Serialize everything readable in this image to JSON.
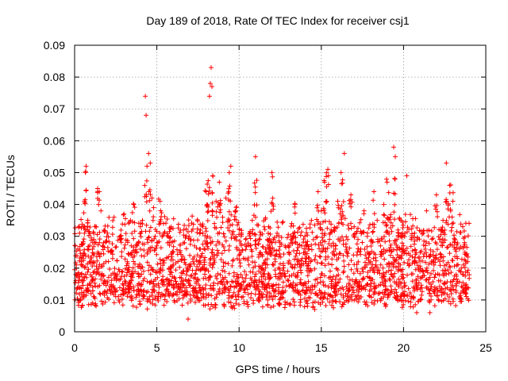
{
  "chart_data": {
    "type": "scatter",
    "title": "Day 189 of 2018, Rate Of TEC Index for receiver csj1",
    "xlabel": "GPS time / hours",
    "ylabel": "ROTI / TECUs",
    "xlim": [
      0,
      25
    ],
    "ylim": [
      0,
      0.09
    ],
    "x_ticks": [
      "0",
      "5",
      "10",
      "15",
      "20",
      "25"
    ],
    "y_ticks": [
      "0",
      "0.01",
      "0.02",
      "0.03",
      "0.04",
      "0.05",
      "0.06",
      "0.07",
      "0.08",
      "0.09"
    ],
    "grid": true,
    "marker": "+",
    "color": "#ff0000",
    "series": [
      {
        "name": "ROTI",
        "description_of_envelope_hours": [
          0,
          24
        ],
        "typical_range": [
          0.01,
          0.04
        ],
        "points": [
          [
            0.1,
            0.021
          ],
          [
            0.2,
            0.026
          ],
          [
            0.3,
            0.031
          ],
          [
            0.4,
            0.018
          ],
          [
            0.5,
            0.024
          ],
          [
            0.6,
            0.041
          ],
          [
            0.65,
            0.05
          ],
          [
            0.7,
            0.052
          ],
          [
            0.8,
            0.035
          ],
          [
            0.9,
            0.015
          ],
          [
            1.0,
            0.012
          ],
          [
            1.1,
            0.028
          ],
          [
            1.2,
            0.019
          ],
          [
            1.3,
            0.033
          ],
          [
            1.4,
            0.045
          ],
          [
            1.5,
            0.044
          ],
          [
            1.6,
            0.038
          ],
          [
            1.7,
            0.027
          ],
          [
            1.8,
            0.016
          ],
          [
            1.9,
            0.022
          ],
          [
            2.0,
            0.031
          ],
          [
            2.2,
            0.025
          ],
          [
            2.4,
            0.036
          ],
          [
            2.6,
            0.018
          ],
          [
            2.8,
            0.029
          ],
          [
            3.0,
            0.037
          ],
          [
            3.2,
            0.022
          ],
          [
            3.4,
            0.035
          ],
          [
            3.6,
            0.04
          ],
          [
            3.8,
            0.027
          ],
          [
            4.0,
            0.033
          ],
          [
            4.2,
            0.019
          ],
          [
            4.3,
            0.074
          ],
          [
            4.35,
            0.068
          ],
          [
            4.4,
            0.052
          ],
          [
            4.5,
            0.056
          ],
          [
            4.6,
            0.053
          ],
          [
            4.7,
            0.042
          ],
          [
            4.8,
            0.039
          ],
          [
            4.9,
            0.03
          ],
          [
            5.0,
            0.028
          ],
          [
            5.2,
            0.041
          ],
          [
            5.4,
            0.034
          ],
          [
            5.6,
            0.023
          ],
          [
            5.8,
            0.018
          ],
          [
            6.0,
            0.021
          ],
          [
            6.2,
            0.015
          ],
          [
            6.4,
            0.025
          ],
          [
            6.6,
            0.019
          ],
          [
            6.8,
            0.012
          ],
          [
            6.9,
            0.004
          ],
          [
            7.0,
            0.016
          ],
          [
            7.2,
            0.022
          ],
          [
            7.4,
            0.011
          ],
          [
            7.6,
            0.026
          ],
          [
            7.8,
            0.031
          ],
          [
            8.0,
            0.044
          ],
          [
            8.2,
            0.074
          ],
          [
            8.25,
            0.078
          ],
          [
            8.3,
            0.083
          ],
          [
            8.35,
            0.077
          ],
          [
            8.4,
            0.049
          ],
          [
            8.5,
            0.034
          ],
          [
            8.6,
            0.041
          ],
          [
            8.8,
            0.047
          ],
          [
            9.0,
            0.036
          ],
          [
            9.2,
            0.042
          ],
          [
            9.4,
            0.05
          ],
          [
            9.5,
            0.052
          ],
          [
            9.6,
            0.031
          ],
          [
            9.8,
            0.038
          ],
          [
            10.0,
            0.024
          ],
          [
            10.2,
            0.017
          ],
          [
            10.4,
            0.029
          ],
          [
            10.6,
            0.021
          ],
          [
            10.8,
            0.035
          ],
          [
            11.0,
            0.055
          ],
          [
            11.2,
            0.019
          ],
          [
            11.4,
            0.014
          ],
          [
            11.6,
            0.026
          ],
          [
            11.8,
            0.033
          ],
          [
            12.0,
            0.05
          ],
          [
            12.2,
            0.022
          ],
          [
            12.4,
            0.012
          ],
          [
            12.6,
            0.018
          ],
          [
            12.8,
            0.027
          ],
          [
            13.0,
            0.016
          ],
          [
            13.2,
            0.034
          ],
          [
            13.4,
            0.04
          ],
          [
            13.6,
            0.022
          ],
          [
            13.8,
            0.015
          ],
          [
            14.0,
            0.03
          ],
          [
            14.2,
            0.026
          ],
          [
            14.4,
            0.035
          ],
          [
            14.6,
            0.007
          ],
          [
            14.8,
            0.044
          ],
          [
            15.0,
            0.038
          ],
          [
            15.2,
            0.047
          ],
          [
            15.4,
            0.051
          ],
          [
            15.6,
            0.032
          ],
          [
            15.8,
            0.024
          ],
          [
            16.0,
            0.041
          ],
          [
            16.2,
            0.05
          ],
          [
            16.4,
            0.056
          ],
          [
            16.6,
            0.029
          ],
          [
            16.8,
            0.043
          ],
          [
            17.0,
            0.033
          ],
          [
            17.2,
            0.019
          ],
          [
            17.4,
            0.026
          ],
          [
            17.6,
            0.038
          ],
          [
            17.8,
            0.03
          ],
          [
            18.0,
            0.022
          ],
          [
            18.2,
            0.044
          ],
          [
            18.4,
            0.035
          ],
          [
            18.6,
            0.027
          ],
          [
            18.8,
            0.04
          ],
          [
            19.0,
            0.047
          ],
          [
            19.2,
            0.036
          ],
          [
            19.4,
            0.058
          ],
          [
            19.5,
            0.055
          ],
          [
            19.6,
            0.029
          ],
          [
            19.8,
            0.021
          ],
          [
            20.0,
            0.017
          ],
          [
            20.2,
            0.049
          ],
          [
            20.4,
            0.024
          ],
          [
            20.6,
            0.011
          ],
          [
            20.8,
            0.006
          ],
          [
            21.0,
            0.019
          ],
          [
            21.2,
            0.031
          ],
          [
            21.4,
            0.038
          ],
          [
            21.6,
            0.006
          ],
          [
            21.8,
            0.022
          ],
          [
            22.0,
            0.043
          ],
          [
            22.2,
            0.029
          ],
          [
            22.4,
            0.035
          ],
          [
            22.6,
            0.053
          ],
          [
            22.8,
            0.046
          ],
          [
            23.0,
            0.041
          ],
          [
            23.2,
            0.018
          ],
          [
            23.4,
            0.026
          ],
          [
            23.6,
            0.033
          ],
          [
            23.8,
            0.012
          ],
          [
            23.9,
            0.022
          ]
        ]
      }
    ]
  }
}
